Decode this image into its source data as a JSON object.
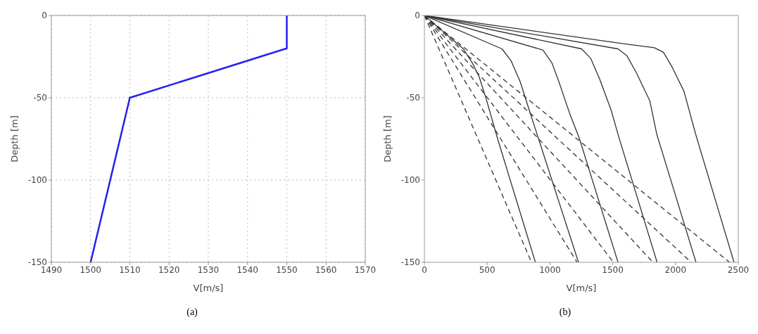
{
  "chart_data": [
    {
      "type": "line",
      "xlabel": "V[m/s]",
      "ylabel": "Depth [m]",
      "xlim": [
        1490,
        1570
      ],
      "xticks": [
        1490,
        1500,
        1510,
        1520,
        1530,
        1540,
        1550,
        1560,
        1570
      ],
      "ylim": [
        -150,
        0
      ],
      "yticks": [
        -150,
        -100,
        -50,
        0
      ],
      "grid": true,
      "marker": "none",
      "annotations": [
        "(a)"
      ],
      "series": [
        {
          "color": "#2222ee",
          "x": [
            1550,
            1550,
            1510,
            1500
          ],
          "values": [
            0,
            -20,
            -50,
            -150
          ]
        }
      ]
    },
    {
      "type": "line",
      "xlabel": "V[m/s]",
      "ylabel": "Depth [m]",
      "xlim": [
        0,
        2500
      ],
      "xticks": [
        0,
        500,
        1000,
        1500,
        2000,
        2500
      ],
      "ylim": [
        -150,
        0
      ],
      "yticks": [
        -150,
        -100,
        -50,
        0
      ],
      "grid": false,
      "marker": "none",
      "annotations": [
        "(b)"
      ],
      "series": [
        {
          "color": "#333333",
          "line_style": "solid",
          "x": [
            0,
            1614,
            1832,
            1904,
            1976,
            2067,
            2160,
            2466
          ],
          "values": [
            0,
            -17.5,
            -19.6,
            -22.4,
            -31.8,
            -46,
            -72,
            -150
          ]
        },
        {
          "color": "#333333",
          "line_style": "solid",
          "x": [
            0,
            1542,
            1614,
            1687,
            1795,
            1850,
            2163
          ],
          "values": [
            0,
            -20.3,
            -24.6,
            -34.6,
            -51.8,
            -72,
            -150
          ]
        },
        {
          "color": "#333333",
          "line_style": "solid",
          "x": [
            0,
            1252,
            1324,
            1397,
            1487,
            1545,
            1853
          ],
          "values": [
            0,
            -20.3,
            -26,
            -38.9,
            -57.5,
            -73,
            -150
          ]
        },
        {
          "color": "#333333",
          "line_style": "solid",
          "x": [
            0,
            944,
            1016,
            1071,
            1161,
            1234,
            1542
          ],
          "values": [
            0,
            -21,
            -28.9,
            -40.3,
            -60.4,
            -74.7,
            -150
          ]
        },
        {
          "color": "#333333",
          "line_style": "solid",
          "x": [
            0,
            618,
            690,
            763,
            835,
            908,
            1227
          ],
          "values": [
            0,
            -20.3,
            -27.5,
            -40.3,
            -57.5,
            -74.7,
            -150
          ]
        },
        {
          "color": "#333333",
          "line_style": "solid",
          "x": [
            0,
            310,
            382,
            437,
            491,
            582,
            884
          ],
          "values": [
            0,
            -20.3,
            -28.9,
            -37.5,
            -50.4,
            -74.7,
            -150
          ]
        },
        {
          "color": "#333333",
          "line_style": "dashed",
          "x": [
            0,
            2430
          ],
          "values": [
            0,
            -150
          ]
        },
        {
          "color": "#333333",
          "line_style": "dashed",
          "x": [
            0,
            2125
          ],
          "values": [
            0,
            -150
          ]
        },
        {
          "color": "#333333",
          "line_style": "dashed",
          "x": [
            0,
            1820
          ],
          "values": [
            0,
            -150
          ]
        },
        {
          "color": "#333333",
          "line_style": "dashed",
          "x": [
            0,
            1505
          ],
          "values": [
            0,
            -150
          ]
        },
        {
          "color": "#333333",
          "line_style": "dashed",
          "x": [
            0,
            1216
          ],
          "values": [
            0,
            -150
          ]
        },
        {
          "color": "#333333",
          "line_style": "dashed",
          "x": [
            0,
            853
          ],
          "values": [
            0,
            -150
          ]
        }
      ]
    }
  ]
}
